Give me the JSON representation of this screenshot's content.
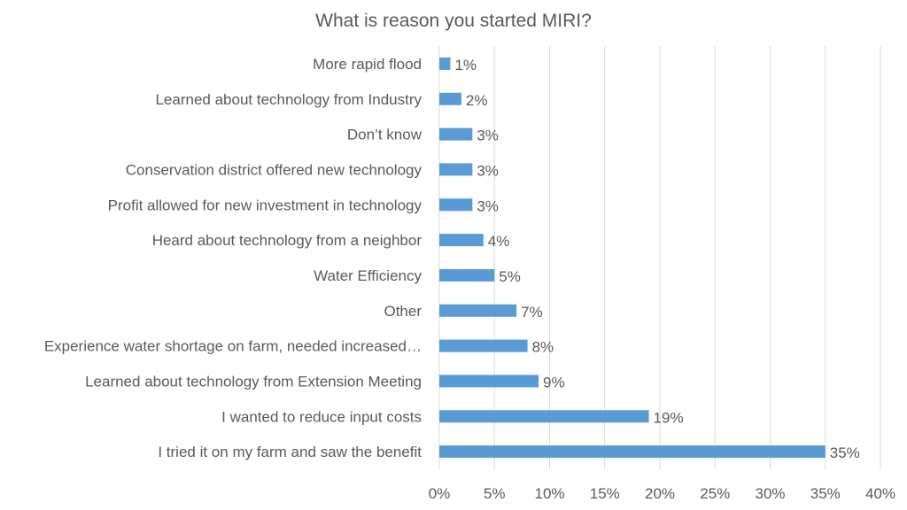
{
  "chart_data": {
    "type": "bar",
    "orientation": "horizontal",
    "title": "What is reason you started MIRI?",
    "categories": [
      "More rapid flood",
      "Learned about technology from Industry",
      "Don’t know",
      "Conservation district offered new technology",
      "Profit allowed for new investment in technology",
      "Heard about technology from a neighbor",
      "Water Efficiency",
      "Other",
      "Experience water shortage on farm, needed increased…",
      "Learned about technology from Extension Meeting",
      "I wanted to reduce input costs",
      "I tried it on my farm and saw the benefit"
    ],
    "values": [
      1,
      2,
      3,
      3,
      3,
      4,
      5,
      7,
      8,
      9,
      19,
      35
    ],
    "data_labels": [
      "1%",
      "2%",
      "3%",
      "3%",
      "3%",
      "4%",
      "5%",
      "7%",
      "8%",
      "9%",
      "19%",
      "35%"
    ],
    "xlim": [
      0,
      40
    ],
    "xticks": [
      "0%",
      "5%",
      "10%",
      "15%",
      "20%",
      "25%",
      "30%",
      "35%",
      "40%"
    ],
    "grid": true,
    "legend": "none",
    "bar_color": "#5B9BD5"
  }
}
